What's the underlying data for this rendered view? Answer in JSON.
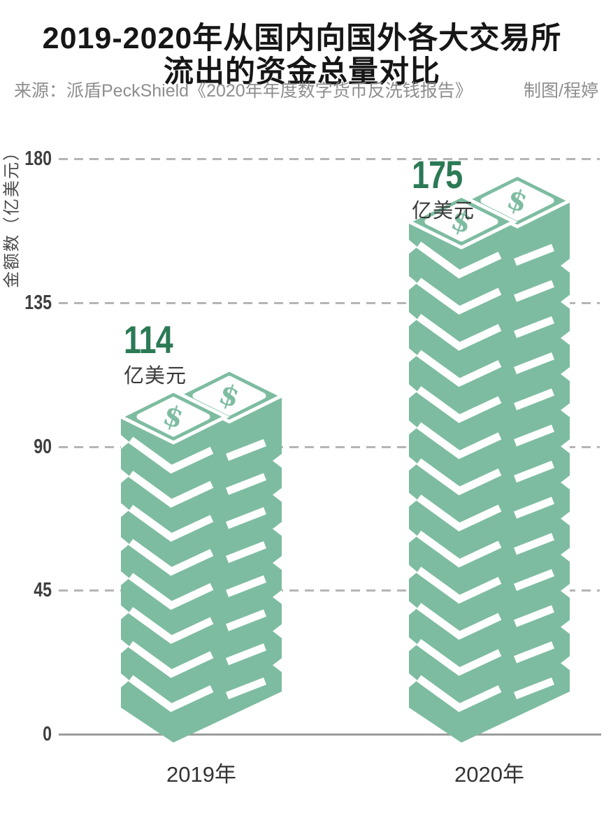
{
  "title": {
    "line1": "2019-2020年从国内向国外各大交易所",
    "line2": "流出的资金总量对比"
  },
  "source": {
    "label": "来源：派盾PeckShield《2020年年度数字货币反洗钱报告》",
    "credit": "制图/程婷"
  },
  "chart_data": {
    "type": "bar",
    "title": "2019-2020年从国内向国外各大交易所流出的资金总量对比",
    "categories": [
      "2019年",
      "2020年"
    ],
    "values": [
      114,
      175
    ],
    "value_unit": "亿美元",
    "currency_symbol": "$",
    "ylabel": "金额数（亿美元）",
    "yticks": [
      180,
      135,
      90,
      45,
      0
    ],
    "ylim": [
      0,
      180
    ],
    "grid": "horizontal dashed gridlines, solid zero baseline",
    "legend": "none",
    "bar_style": "isometric stacks of dollar-bill bundles with $ sign on top bills",
    "colors": {
      "bar": "#7dbca0",
      "value_number": "#2b7a55",
      "value_unit_text": "#3a3a3a",
      "axis_text": "#3f3f3f",
      "grid": "#b5b5b5",
      "baseline": "#9c9c9c",
      "title_text": "#161616",
      "source_text": "#8e8e8e",
      "background": "#ffffff"
    }
  }
}
